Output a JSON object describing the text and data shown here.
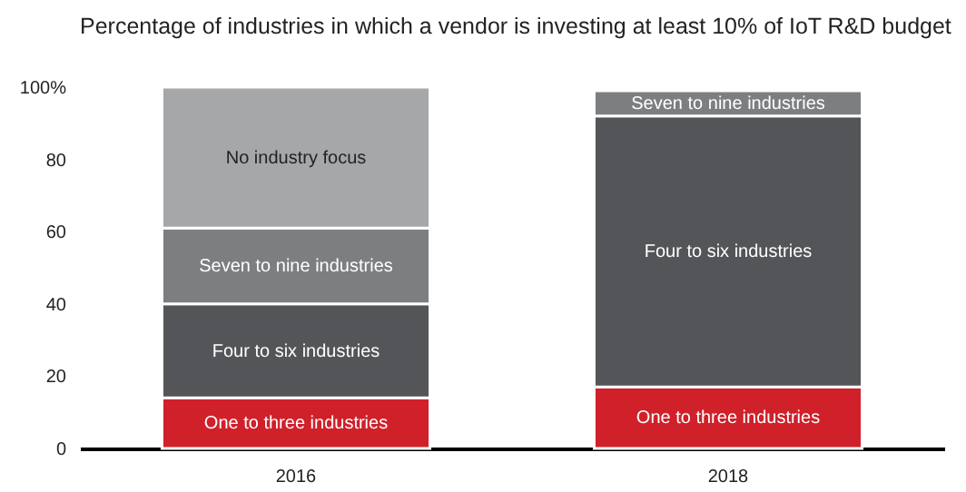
{
  "chart_data": {
    "type": "bar",
    "title": "Percentage of industries in which a vendor is investing at least 10% of IoT R&D budget",
    "categories": [
      "2016",
      "2018"
    ],
    "stacked": true,
    "legend": false,
    "grid": false,
    "ylim": [
      0,
      100
    ],
    "yticks": [
      0,
      20,
      40,
      60,
      {
        "value": 80,
        "label": "80"
      },
      {
        "value": 100,
        "label": "100%"
      }
    ],
    "series": [
      {
        "name": "One to three industries",
        "color": "#d0202a",
        "values": [
          14,
          17
        ]
      },
      {
        "name": "Four to six industries",
        "color": "#545558",
        "values": [
          26,
          75
        ]
      },
      {
        "name": "Seven to nine industries",
        "color": "#7d7e80",
        "values": [
          21,
          7
        ]
      },
      {
        "name": "No industry focus",
        "color": "#a6a7a9",
        "values": [
          39,
          null
        ]
      }
    ]
  }
}
